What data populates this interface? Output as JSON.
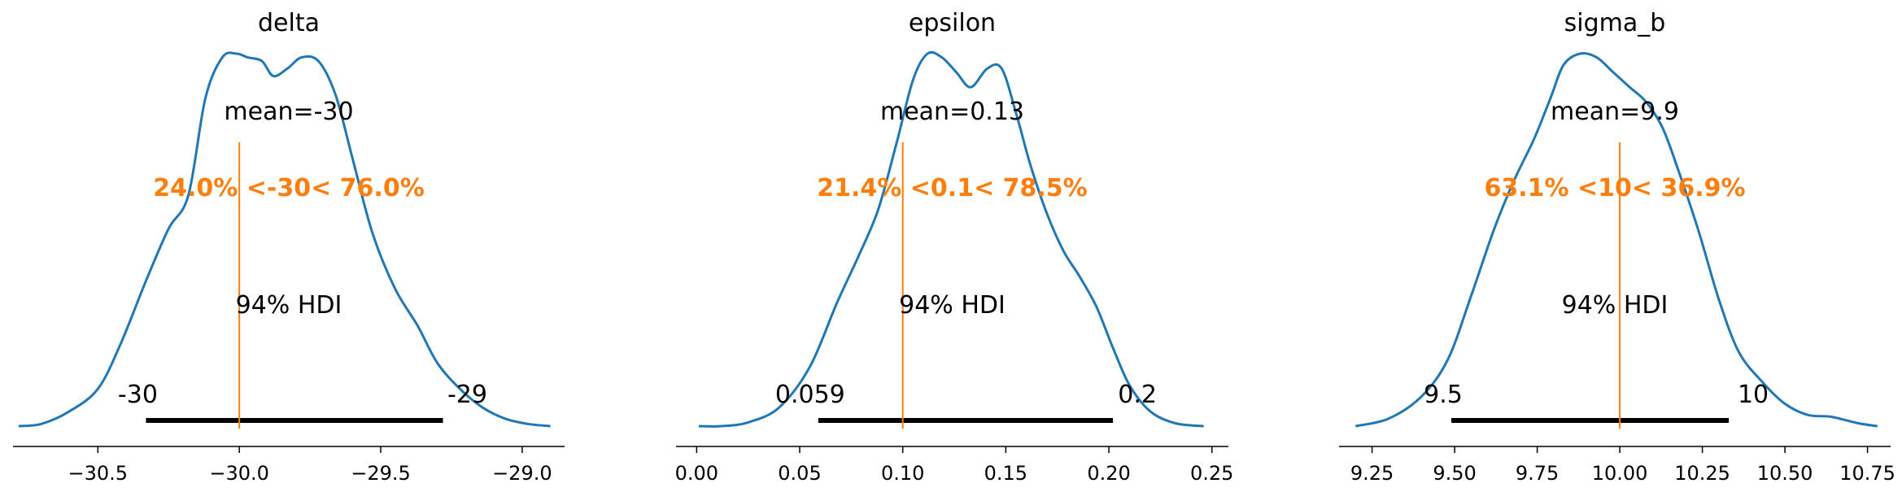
{
  "colors": {
    "density": "#1f77b4",
    "reference": "#ff7f0e",
    "hdi": "#000000",
    "axis": "#000000"
  },
  "chart_data": [
    {
      "type": "density",
      "title": "delta",
      "xlim": [
        -30.8,
        -28.85
      ],
      "ticks": [
        -30.5,
        -30.0,
        -29.5,
        -29.0
      ],
      "tick_labels": [
        "−30.5",
        "−30.0",
        "−29.5",
        "−29.0"
      ],
      "density": {
        "x": [
          -30.78,
          -30.7,
          -30.6,
          -30.5,
          -30.42,
          -30.33,
          -30.25,
          -30.18,
          -30.12,
          -30.06,
          -30.01,
          -29.97,
          -29.92,
          -29.88,
          -29.83,
          -29.78,
          -29.72,
          -29.66,
          -29.6,
          -29.53,
          -29.45,
          -29.37,
          -29.3,
          -29.22,
          -29.14,
          -29.06,
          -28.98,
          -28.9
        ],
        "y": [
          0.0,
          0.006,
          0.04,
          0.1,
          0.22,
          0.39,
          0.53,
          0.62,
          0.88,
          0.99,
          1.0,
          0.99,
          0.98,
          0.94,
          0.96,
          0.99,
          0.98,
          0.89,
          0.72,
          0.52,
          0.37,
          0.27,
          0.17,
          0.1,
          0.05,
          0.02,
          0.006,
          0.0
        ]
      },
      "mean_label": "mean=-30",
      "ref_value": -30.0,
      "ref_label": "24.0% <-30< 76.0%",
      "hdi_label": "94% HDI",
      "hdi_low": -30.33,
      "hdi_high": -29.28,
      "hdi_low_label": "-30",
      "hdi_high_label": "-29"
    },
    {
      "type": "density",
      "title": "epsilon",
      "xlim": [
        -0.01,
        0.258
      ],
      "ticks": [
        0.0,
        0.05,
        0.1,
        0.15,
        0.2,
        0.25
      ],
      "tick_labels": [
        "0.00",
        "0.05",
        "0.10",
        "0.15",
        "0.20",
        "0.25"
      ],
      "density": {
        "x": [
          0.001,
          0.012,
          0.025,
          0.04,
          0.055,
          0.068,
          0.078,
          0.088,
          0.097,
          0.105,
          0.112,
          0.119,
          0.126,
          0.133,
          0.141,
          0.148,
          0.155,
          0.162,
          0.17,
          0.178,
          0.186,
          0.194,
          0.202,
          0.21,
          0.22,
          0.232,
          0.246
        ],
        "y": [
          0.0,
          0.0,
          0.01,
          0.05,
          0.16,
          0.33,
          0.45,
          0.58,
          0.76,
          0.93,
          1.0,
          0.99,
          0.95,
          0.91,
          0.96,
          0.96,
          0.84,
          0.7,
          0.57,
          0.47,
          0.4,
          0.32,
          0.21,
          0.11,
          0.04,
          0.008,
          0.0
        ]
      },
      "mean_label": "mean=0.13",
      "ref_value": 0.1,
      "ref_label": "21.4% <0.1< 78.5%",
      "hdi_label": "94% HDI",
      "hdi_low": 0.059,
      "hdi_high": 0.202,
      "hdi_low_label": "0.059",
      "hdi_high_label": "0.2"
    },
    {
      "type": "density",
      "title": "sigma_b",
      "xlim": [
        9.15,
        10.82
      ],
      "ticks": [
        9.25,
        9.5,
        9.75,
        10.0,
        10.25,
        10.5,
        10.75
      ],
      "tick_labels": [
        "9.25",
        "9.50",
        "9.75",
        "10.00",
        "10.25",
        "10.50",
        "10.75"
      ],
      "density": {
        "x": [
          9.2,
          9.3,
          9.4,
          9.48,
          9.55,
          9.62,
          9.68,
          9.74,
          9.79,
          9.83,
          9.88,
          9.93,
          9.98,
          10.03,
          10.08,
          10.13,
          10.18,
          10.24,
          10.3,
          10.36,
          10.43,
          10.5,
          10.57,
          10.64,
          10.72,
          10.78
        ],
        "y": [
          0.0,
          0.02,
          0.08,
          0.18,
          0.35,
          0.53,
          0.66,
          0.77,
          0.88,
          0.97,
          1.0,
          0.99,
          0.95,
          0.91,
          0.87,
          0.8,
          0.68,
          0.52,
          0.34,
          0.2,
          0.12,
          0.06,
          0.03,
          0.025,
          0.008,
          0.0
        ]
      },
      "mean_label": "mean=9.9",
      "ref_value": 10.0,
      "ref_label": "63.1% <10< 36.9%",
      "hdi_label": "94% HDI",
      "hdi_low": 9.49,
      "hdi_high": 10.33,
      "hdi_low_label": "9.5",
      "hdi_high_label": "10"
    }
  ]
}
